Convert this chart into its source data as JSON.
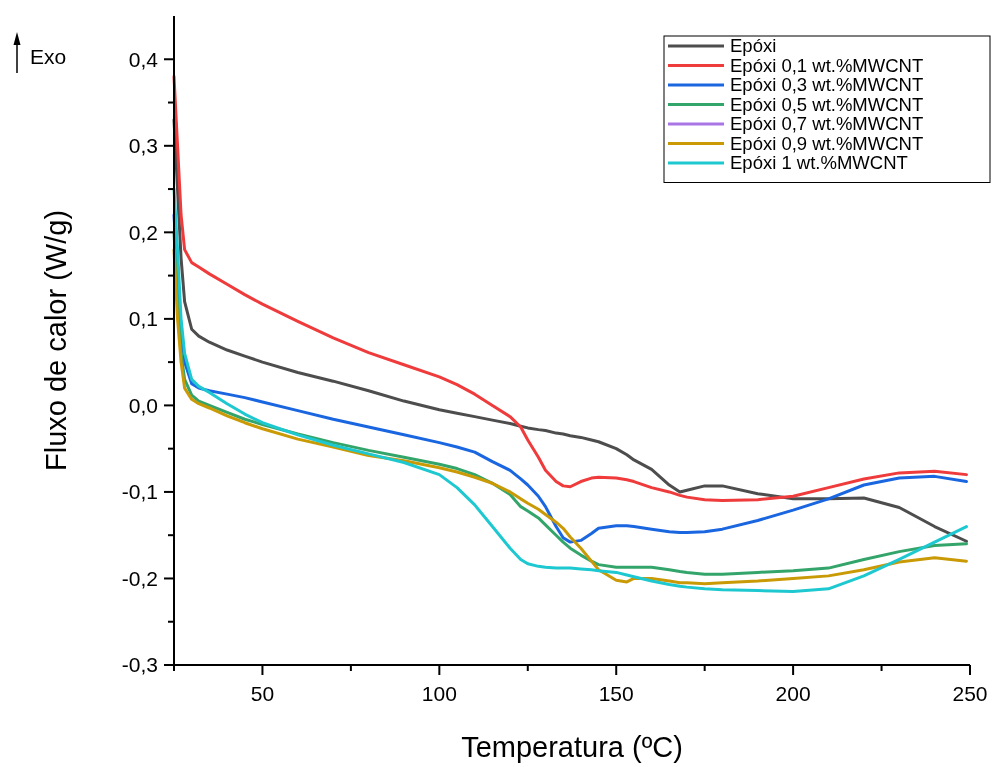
{
  "chart_data": {
    "type": "line",
    "xlabel": "Temperatura (ºC)",
    "ylabel": "Fluxo de calor (W/g)",
    "annotations": [
      "Exo"
    ],
    "xlim": [
      25,
      250
    ],
    "xticks": [
      {
        "value": 25,
        "label": null
      },
      50,
      {
        "value": 75,
        "label": null
      },
      100,
      {
        "value": 125,
        "label": null
      },
      150,
      {
        "value": 175,
        "label": null
      },
      200,
      {
        "value": 225,
        "label": null
      },
      250
    ],
    "ylim": [
      -0.3,
      0.45
    ],
    "yticks": [
      {
        "value": -0.3,
        "label": "-0,3"
      },
      {
        "value": -0.25,
        "label": null
      },
      {
        "value": -0.2,
        "label": "-0,2"
      },
      {
        "value": -0.15,
        "label": null
      },
      {
        "value": -0.1,
        "label": "-0,1"
      },
      {
        "value": -0.05,
        "label": null
      },
      {
        "value": 0,
        "label": "0,0"
      },
      {
        "value": 0.05,
        "label": null
      },
      {
        "value": 0.1,
        "label": "0,1"
      },
      {
        "value": 0.15,
        "label": null
      },
      {
        "value": 0.2,
        "label": "0,2"
      },
      {
        "value": 0.25,
        "label": null
      },
      {
        "value": 0.3,
        "label": "0,3"
      },
      {
        "value": 0.35,
        "label": null
      },
      {
        "value": 0.4,
        "label": "0,4"
      }
    ],
    "grid": false,
    "legend": "top right",
    "marker": "none",
    "line_style": "solid",
    "x": [
      25,
      26,
      27,
      28,
      30,
      32,
      35,
      40,
      45,
      50,
      60,
      70,
      80,
      90,
      100,
      105,
      110,
      115,
      120,
      123,
      125,
      128,
      130,
      133,
      135,
      137,
      140,
      143,
      145,
      150,
      153,
      155,
      160,
      165,
      168,
      170,
      175,
      180,
      190,
      200,
      210,
      220,
      230,
      240,
      249
    ],
    "series": [
      {
        "name": "Epóxi",
        "color": "#4d4d4d",
        "values": [
          0.33,
          0.25,
          0.17,
          0.12,
          0.088,
          0.08,
          0.073,
          0.064,
          0.057,
          0.05,
          0.038,
          0.028,
          0.017,
          0.005,
          -0.005,
          -0.009,
          -0.013,
          -0.017,
          -0.021,
          -0.024,
          -0.026,
          -0.028,
          -0.029,
          -0.032,
          -0.033,
          -0.035,
          -0.037,
          -0.04,
          -0.042,
          -0.05,
          -0.057,
          -0.063,
          -0.074,
          -0.092,
          -0.1,
          -0.098,
          -0.093,
          -0.093,
          -0.102,
          -0.108,
          -0.108,
          -0.107,
          -0.118,
          -0.14,
          -0.157
        ]
      },
      {
        "name": "Epóxi 0,1 wt.%MWCNT",
        "color": "#ef3b3b",
        "values": [
          0.38,
          0.3,
          0.22,
          0.18,
          0.165,
          0.16,
          0.152,
          0.14,
          0.128,
          0.117,
          0.097,
          0.078,
          0.061,
          0.047,
          0.033,
          0.024,
          0.013,
          0.0,
          -0.013,
          -0.025,
          -0.04,
          -0.06,
          -0.075,
          -0.088,
          -0.093,
          -0.094,
          -0.088,
          -0.084,
          -0.083,
          -0.084,
          -0.086,
          -0.088,
          -0.095,
          -0.1,
          -0.104,
          -0.106,
          -0.109,
          -0.11,
          -0.109,
          -0.105,
          -0.095,
          -0.085,
          -0.078,
          -0.076,
          -0.08
        ]
      },
      {
        "name": "Epóxi 0,3 wt.%MWCNT",
        "color": "#1a66e0",
        "values": [
          0.22,
          0.15,
          0.09,
          0.05,
          0.025,
          0.02,
          0.017,
          0.013,
          0.009,
          0.004,
          -0.006,
          -0.016,
          -0.025,
          -0.034,
          -0.043,
          -0.048,
          -0.054,
          -0.065,
          -0.075,
          -0.085,
          -0.092,
          -0.105,
          -0.117,
          -0.14,
          -0.153,
          -0.158,
          -0.156,
          -0.148,
          -0.142,
          -0.139,
          -0.139,
          -0.14,
          -0.143,
          -0.146,
          -0.147,
          -0.147,
          -0.146,
          -0.143,
          -0.133,
          -0.121,
          -0.108,
          -0.092,
          -0.084,
          -0.082,
          -0.088
        ]
      },
      {
        "name": "Epóxi 0,5 wt.%MWCNT",
        "color": "#34a56a",
        "values": [
          0.2,
          0.12,
          0.06,
          0.03,
          0.012,
          0.005,
          0.0,
          -0.008,
          -0.016,
          -0.022,
          -0.033,
          -0.043,
          -0.052,
          -0.06,
          -0.068,
          -0.073,
          -0.08,
          -0.09,
          -0.103,
          -0.117,
          -0.122,
          -0.13,
          -0.138,
          -0.15,
          -0.158,
          -0.165,
          -0.173,
          -0.18,
          -0.184,
          -0.187,
          -0.187,
          -0.187,
          -0.187,
          -0.19,
          -0.192,
          -0.193,
          -0.195,
          -0.195,
          -0.193,
          -0.191,
          -0.188,
          -0.178,
          -0.169,
          -0.162,
          -0.16
        ]
      },
      {
        "name": "Epóxi 0,7 wt.%MWCNT",
        "color": "#a974e6",
        "values": [
          null,
          null,
          null,
          null,
          null,
          null,
          null,
          null,
          null,
          null,
          null,
          null,
          null,
          null,
          null,
          null,
          null,
          null,
          null,
          null,
          null,
          null,
          null,
          null,
          null,
          null,
          null,
          null,
          null,
          null,
          null,
          null,
          null,
          null,
          null,
          null,
          null,
          null,
          null,
          null,
          null,
          null,
          null,
          null,
          null
        ]
      },
      {
        "name": "Epóxi 0,9 wt.%MWCNT",
        "color": "#c99a06",
        "values": [
          0.18,
          0.1,
          0.05,
          0.02,
          0.007,
          0.002,
          -0.003,
          -0.012,
          -0.02,
          -0.027,
          -0.039,
          -0.048,
          -0.058,
          -0.064,
          -0.072,
          -0.077,
          -0.083,
          -0.09,
          -0.1,
          -0.108,
          -0.113,
          -0.12,
          -0.126,
          -0.135,
          -0.142,
          -0.152,
          -0.165,
          -0.18,
          -0.19,
          -0.202,
          -0.204,
          -0.2,
          -0.2,
          -0.203,
          -0.205,
          -0.205,
          -0.206,
          -0.205,
          -0.203,
          -0.2,
          -0.197,
          -0.19,
          -0.181,
          -0.176,
          -0.18
        ]
      },
      {
        "name": "Epóxi 1 wt.%MWCNT",
        "color": "#1ec8d0",
        "values": [
          0.25,
          0.18,
          0.1,
          0.06,
          0.03,
          0.022,
          0.015,
          0.002,
          -0.01,
          -0.02,
          -0.034,
          -0.046,
          -0.056,
          -0.066,
          -0.08,
          -0.095,
          -0.115,
          -0.14,
          -0.165,
          -0.178,
          -0.183,
          -0.186,
          -0.187,
          -0.188,
          -0.188,
          -0.188,
          -0.189,
          -0.19,
          -0.191,
          -0.193,
          -0.196,
          -0.198,
          -0.203,
          -0.207,
          -0.209,
          -0.21,
          -0.212,
          -0.213,
          -0.214,
          -0.215,
          -0.212,
          -0.197,
          -0.178,
          -0.158,
          -0.14
        ]
      }
    ]
  }
}
